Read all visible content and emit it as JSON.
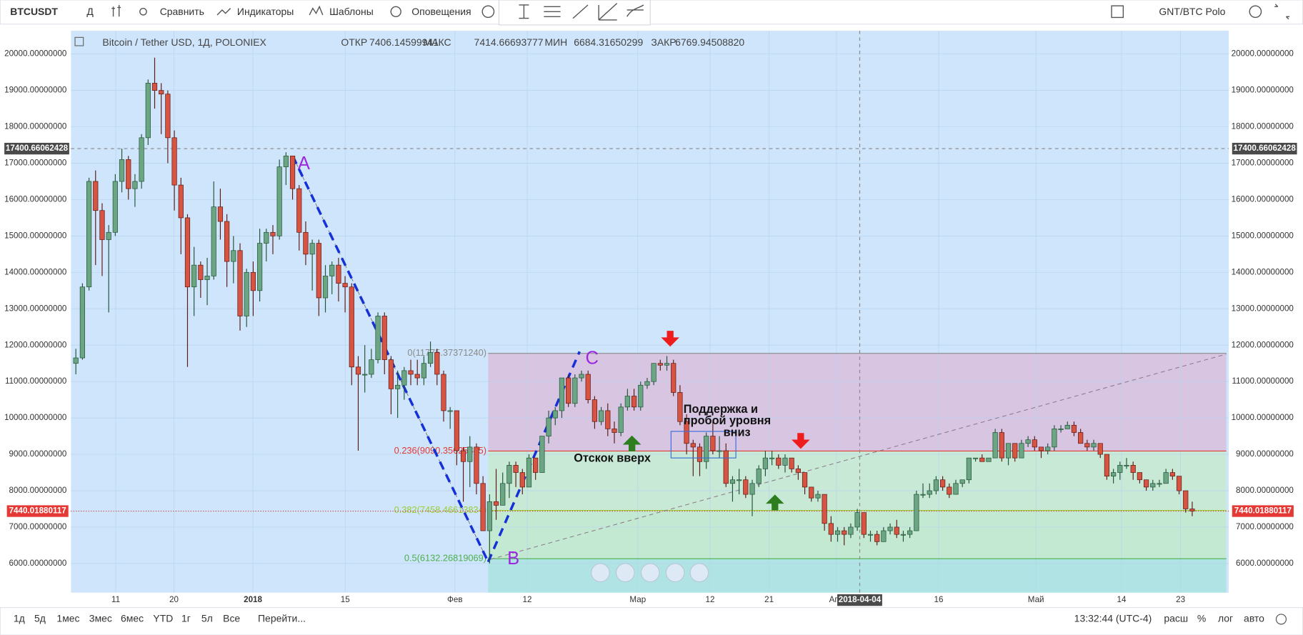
{
  "toolbar": {
    "symbol": "BTCUSDT",
    "interval": "Д",
    "items": [
      "Сравнить",
      "Индикаторы",
      "Шаблоны",
      "Оповещения"
    ],
    "pair": "GNT/BTC Polo"
  },
  "legend": {
    "title": "Bitcoin / Tether USD, 1Д, POLONIEX",
    "fields": [
      {
        "label": "ОТКР",
        "value": "7406.14599941"
      },
      {
        "label": "МАКС",
        "value": "7414.66693777"
      },
      {
        "label": "МИН",
        "value": "6684.31650299"
      },
      {
        "label": "ЗАКР",
        "value": "6769.94508820"
      }
    ]
  },
  "chart": {
    "type": "candlestick",
    "ylim": [
      5200,
      20640
    ],
    "yticks": [
      {
        "value": 6000,
        "label": "6000.00000000"
      },
      {
        "value": 7000,
        "label": "7000.00000000"
      },
      {
        "value": 8000,
        "label": "8000.00000000"
      },
      {
        "value": 9000,
        "label": "9000.00000000"
      },
      {
        "value": 10000,
        "label": "10000.00000000"
      },
      {
        "value": 11000,
        "label": "11000.00000000"
      },
      {
        "value": 12000,
        "label": "12000.00000000"
      },
      {
        "value": 13000,
        "label": "13000.00000000"
      },
      {
        "value": 14000,
        "label": "14000.00000000"
      },
      {
        "value": 15000,
        "label": "15000.00000000"
      },
      {
        "value": 16000,
        "label": "16000.00000000"
      },
      {
        "value": 17000,
        "label": "17000.00000000"
      },
      {
        "value": 18000,
        "label": "18000.00000000"
      },
      {
        "value": 19000,
        "label": "19000.00000000"
      },
      {
        "value": 20000,
        "label": "20000.00000000"
      }
    ],
    "x_labels": [
      "11",
      "20",
      "2018",
      "15",
      "Фев",
      "12",
      "Мар",
      "12",
      "21",
      "Апр",
      "16",
      "Май",
      "14",
      "23"
    ],
    "crosshair": {
      "price": 17400.66062428,
      "date": "2018-04-04"
    },
    "last_price": 7440.01880117,
    "up_color": "#6ba583",
    "down_color": "#d75442",
    "candles": [
      [
        11500,
        11900,
        11200,
        11650
      ],
      [
        11650,
        13700,
        11600,
        13600
      ],
      [
        13600,
        16600,
        13500,
        16500
      ],
      [
        16500,
        16800,
        14200,
        15700
      ],
      [
        15700,
        15900,
        13900,
        14900
      ],
      [
        14900,
        15300,
        12900,
        15100
      ],
      [
        15100,
        16700,
        15000,
        16500
      ],
      [
        16500,
        17400,
        16200,
        17100
      ],
      [
        17100,
        17200,
        16000,
        16300
      ],
      [
        16300,
        16700,
        15800,
        16500
      ],
      [
        16500,
        17800,
        16300,
        17700
      ],
      [
        17700,
        19300,
        17500,
        19200
      ],
      [
        19200,
        19900,
        18500,
        19000
      ],
      [
        19000,
        19200,
        17800,
        18900
      ],
      [
        18900,
        19000,
        17000,
        17700
      ],
      [
        17700,
        17900,
        15700,
        16400
      ],
      [
        16400,
        16600,
        14500,
        15500
      ],
      [
        15500,
        15600,
        11400,
        13600
      ],
      [
        13600,
        14700,
        12800,
        14200
      ],
      [
        14200,
        14300,
        13300,
        13800
      ],
      [
        13800,
        14400,
        13100,
        13900
      ],
      [
        13900,
        16500,
        13800,
        15800
      ],
      [
        15800,
        16300,
        14900,
        15400
      ],
      [
        15400,
        15600,
        13600,
        14300
      ],
      [
        14300,
        15000,
        13700,
        14600
      ],
      [
        14600,
        14800,
        12400,
        12800
      ],
      [
        12800,
        14100,
        12500,
        14000
      ],
      [
        14000,
        14300,
        12800,
        13500
      ],
      [
        13500,
        15200,
        13200,
        14800
      ],
      [
        14800,
        15200,
        14300,
        15100
      ],
      [
        15100,
        15300,
        14500,
        15000
      ],
      [
        15000,
        17100,
        14900,
        16900
      ],
      [
        16900,
        17300,
        16400,
        17200
      ],
      [
        17200,
        17200,
        16000,
        16300
      ],
      [
        16300,
        16400,
        14600,
        15100
      ],
      [
        15100,
        15400,
        14200,
        14500
      ],
      [
        14500,
        14900,
        13500,
        14800
      ],
      [
        14800,
        14900,
        12800,
        13300
      ],
      [
        13300,
        14200,
        12900,
        13900
      ],
      [
        13900,
        14300,
        13400,
        14200
      ],
      [
        14200,
        14400,
        13200,
        13700
      ],
      [
        13700,
        13900,
        12900,
        13600
      ],
      [
        13600,
        13700,
        10900,
        11400
      ],
      [
        11400,
        11700,
        9100,
        11200
      ],
      [
        11200,
        12000,
        10700,
        11200
      ],
      [
        11200,
        11900,
        11100,
        11600
      ],
      [
        11600,
        12900,
        11500,
        12800
      ],
      [
        12800,
        12900,
        11200,
        11600
      ],
      [
        11600,
        11700,
        10100,
        10800
      ],
      [
        10800,
        11300,
        10000,
        10900
      ],
      [
        10900,
        11400,
        10500,
        11300
      ],
      [
        11300,
        11600,
        10900,
        11200
      ],
      [
        11200,
        11600,
        10900,
        11100
      ],
      [
        11100,
        11700,
        10900,
        11500
      ],
      [
        11500,
        12100,
        11400,
        11800
      ],
      [
        11800,
        11900,
        10900,
        11200
      ],
      [
        11200,
        11300,
        9900,
        10200
      ],
      [
        10200,
        10300,
        9700,
        10200
      ],
      [
        10200,
        10200,
        8700,
        9100
      ],
      [
        9100,
        9200,
        7700,
        8800
      ],
      [
        8800,
        9500,
        8100,
        9200
      ],
      [
        9200,
        9300,
        7900,
        8200
      ],
      [
        8200,
        8400,
        6900,
        6900
      ],
      [
        6900,
        7900,
        6000,
        7700
      ],
      [
        7700,
        8600,
        7200,
        7600
      ],
      [
        7600,
        8500,
        7600,
        8200
      ],
      [
        8200,
        8800,
        7800,
        8700
      ],
      [
        8700,
        8800,
        8100,
        8500
      ],
      [
        8500,
        8600,
        7900,
        8100
      ],
      [
        8100,
        9000,
        8100,
        8900
      ],
      [
        8900,
        8900,
        8300,
        8500
      ],
      [
        8500,
        9500,
        8500,
        9500
      ],
      [
        9500,
        10200,
        9300,
        10000
      ],
      [
        10000,
        10300,
        9800,
        10200
      ],
      [
        10200,
        11100,
        10000,
        11100
      ],
      [
        11100,
        11200,
        10300,
        10400
      ],
      [
        10400,
        11200,
        10300,
        11100
      ],
      [
        11100,
        11300,
        11000,
        11200
      ],
      [
        11200,
        11300,
        10400,
        10500
      ],
      [
        10500,
        10600,
        9700,
        9900
      ],
      [
        9900,
        10300,
        9800,
        10200
      ],
      [
        10200,
        10400,
        9500,
        9700
      ],
      [
        9700,
        9900,
        9300,
        9600
      ],
      [
        9600,
        10400,
        9500,
        10300
      ],
      [
        10300,
        10800,
        10200,
        10600
      ],
      [
        10600,
        10800,
        10200,
        10300
      ],
      [
        10300,
        11000,
        10200,
        10900
      ],
      [
        10900,
        11100,
        10800,
        11000
      ],
      [
        11000,
        11500,
        10900,
        11500
      ],
      [
        11500,
        11600,
        11300,
        11450
      ],
      [
        11450,
        11700,
        11300,
        11500
      ],
      [
        11500,
        11600,
        10600,
        10700
      ],
      [
        10700,
        10900,
        9800,
        9900
      ],
      [
        9900,
        10100,
        9000,
        9300
      ],
      [
        9300,
        9400,
        8400,
        9200
      ],
      [
        9200,
        9300,
        8400,
        8800
      ],
      [
        8800,
        9600,
        8600,
        9500
      ],
      [
        9500,
        9900,
        9000,
        9100
      ],
      [
        9100,
        9500,
        8900,
        9100
      ],
      [
        9100,
        9300,
        8100,
        8200
      ],
      [
        8200,
        8400,
        7700,
        8300
      ],
      [
        8300,
        8600,
        7900,
        8300
      ],
      [
        8300,
        8400,
        7800,
        7900
      ],
      [
        7900,
        8300,
        7300,
        8200
      ],
      [
        8200,
        8700,
        8100,
        8600
      ],
      [
        8600,
        9100,
        8400,
        8900
      ],
      [
        8900,
        9100,
        8700,
        8900
      ],
      [
        8900,
        9000,
        8600,
        8700
      ],
      [
        8700,
        9000,
        8500,
        8900
      ],
      [
        8900,
        8900,
        8500,
        8600
      ],
      [
        8600,
        8700,
        8300,
        8500
      ],
      [
        8500,
        8500,
        7900,
        8100
      ],
      [
        8100,
        8100,
        7700,
        7800
      ],
      [
        7800,
        8000,
        7700,
        7900
      ],
      [
        7900,
        7900,
        6900,
        7100
      ],
      [
        7100,
        7300,
        6600,
        6800
      ],
      [
        6800,
        7000,
        6600,
        6900
      ],
      [
        6900,
        7000,
        6500,
        6800
      ],
      [
        6800,
        7100,
        6700,
        7000
      ],
      [
        7000,
        7500,
        6900,
        7400
      ],
      [
        7400,
        7400,
        6700,
        6800
      ],
      [
        6800,
        6900,
        6600,
        6800
      ],
      [
        6800,
        6900,
        6500,
        6600
      ],
      [
        6600,
        7000,
        6600,
        6900
      ],
      [
        6900,
        7100,
        6800,
        7000
      ],
      [
        7000,
        7200,
        6700,
        6800
      ],
      [
        6800,
        6900,
        6600,
        6800
      ],
      [
        6800,
        7000,
        6700,
        6900
      ],
      [
        6900,
        8000,
        6900,
        7900
      ],
      [
        7900,
        8200,
        7800,
        7900
      ],
      [
        7900,
        8200,
        7800,
        8000
      ],
      [
        8000,
        8400,
        7900,
        8300
      ],
      [
        8300,
        8400,
        8000,
        8100
      ],
      [
        8100,
        8200,
        7800,
        7900
      ],
      [
        7900,
        8300,
        7900,
        8200
      ],
      [
        8200,
        8300,
        8100,
        8300
      ],
      [
        8300,
        8900,
        8200,
        8900
      ],
      [
        8900,
        8900,
        8800,
        8900
      ],
      [
        8900,
        9000,
        8800,
        8800
      ],
      [
        8800,
        8900,
        8800,
        8900
      ],
      [
        8900,
        9700,
        8900,
        9600
      ],
      [
        9600,
        9700,
        8800,
        8900
      ],
      [
        8900,
        9300,
        8700,
        9300
      ],
      [
        9300,
        9300,
        8800,
        8900
      ],
      [
        8900,
        9400,
        8900,
        9300
      ],
      [
        9300,
        9500,
        9200,
        9400
      ],
      [
        9400,
        9500,
        9100,
        9200
      ],
      [
        9200,
        9200,
        8900,
        9100
      ],
      [
        9100,
        9300,
        9000,
        9200
      ],
      [
        9200,
        9800,
        9100,
        9700
      ],
      [
        9700,
        9800,
        9600,
        9700
      ],
      [
        9700,
        9900,
        9700,
        9800
      ],
      [
        9800,
        9900,
        9500,
        9600
      ],
      [
        9600,
        9700,
        9300,
        9300
      ],
      [
        9300,
        9400,
        9100,
        9200
      ],
      [
        9200,
        9400,
        9100,
        9300
      ],
      [
        9300,
        9300,
        8900,
        9000
      ],
      [
        9000,
        9000,
        8300,
        8400
      ],
      [
        8400,
        8600,
        8200,
        8500
      ],
      [
        8500,
        8800,
        8300,
        8700
      ],
      [
        8700,
        8900,
        8600,
        8700
      ],
      [
        8700,
        8800,
        8300,
        8500
      ],
      [
        8500,
        8500,
        8200,
        8300
      ],
      [
        8300,
        8300,
        8000,
        8100
      ],
      [
        8100,
        8300,
        8000,
        8200
      ],
      [
        8200,
        8300,
        8100,
        8200
      ],
      [
        8200,
        8600,
        8200,
        8500
      ],
      [
        8500,
        8600,
        8300,
        8400
      ],
      [
        8400,
        8400,
        7900,
        8000
      ],
      [
        8000,
        8000,
        7400,
        7500
      ],
      [
        7500,
        7700,
        7300,
        7440
      ]
    ],
    "fib": {
      "levels": [
        {
          "price": 11775.3737124,
          "label": "0(11775.37371240)",
          "color": "#8a8a8a"
        },
        {
          "price": 9090.35625845,
          "label": "0.236(9090.35625845)",
          "color": "#e53935"
        },
        {
          "price": 7458.46613834,
          "label": "0.382(7458.46613834)",
          "color": "#9acd32"
        },
        {
          "price": 6132.26819069,
          "label": "0.5(6132.26819069)",
          "color": "#4caf50"
        }
      ],
      "zone_colors": [
        "#d7c5e2",
        "#c8e9d6",
        "#c4e9d2",
        "#b0e4e4"
      ]
    },
    "annotations": {
      "waves": [
        "A",
        "B",
        "C"
      ],
      "support": [
        "Поддержка и",
        "пробой уровня",
        "вниз"
      ],
      "bounce": "Отскок вверх"
    }
  },
  "bottom_bar": {
    "ranges": [
      "1д",
      "5д",
      "1мес",
      "3мес",
      "6мес",
      "YTD",
      "1г",
      "5л",
      "Все"
    ],
    "goto": "Перейти...",
    "time": "13:32:44 (UTC-4)",
    "options": [
      "расш",
      "%",
      "лог",
      "авто"
    ]
  }
}
